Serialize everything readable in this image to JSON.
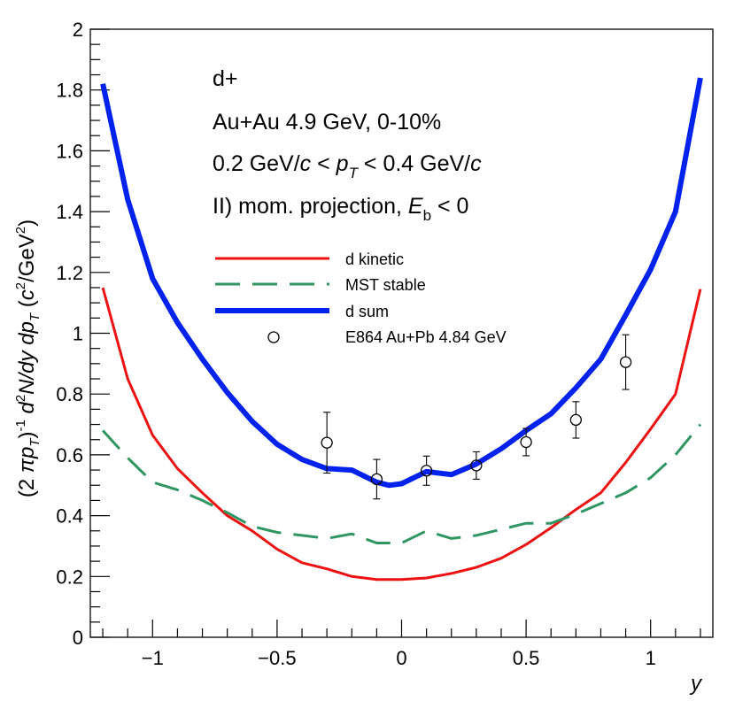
{
  "chart_data": {
    "type": "line",
    "title": "",
    "xlabel": "y",
    "ylabel": "(2πp_T)^-1 d²N/dy dp_T (c²/GeV²)",
    "xlim": [
      -1.25,
      1.25
    ],
    "ylim": [
      0,
      2
    ],
    "x_ticks": [
      -1,
      -0.5,
      0,
      0.5,
      1
    ],
    "x_tick_labels": [
      "−1",
      "−0.5",
      "0",
      "0.5",
      "1"
    ],
    "y_ticks": [
      0,
      0.2,
      0.4,
      0.6,
      0.8,
      1,
      1.2,
      1.4,
      1.6,
      1.8,
      2
    ],
    "y_tick_labels": [
      "0",
      "0.2",
      "0.4",
      "0.6",
      "0.8",
      "1",
      "1.2",
      "1.4",
      "1.6",
      "1.8",
      "2"
    ],
    "annotations": {
      "particle": "d+",
      "system": "Au+Au 4.9 GeV, 0-10%",
      "pt_pre": "0.2 GeV/",
      "pt_c1": "c",
      "pt_lt1": " < ",
      "pt_p": "p",
      "pt_T": "T",
      "pt_lt2": " < 0.4 GeV/",
      "pt_c2": "c",
      "method_pre": "II) mom. projection, ",
      "method_E": "E",
      "method_b": "b",
      "method_post": " < 0"
    },
    "series": [
      {
        "name": "d kinetic",
        "color": "#ee1111",
        "style": "solid",
        "x": [
          -1.2,
          -1.1,
          -1.0,
          -0.9,
          -0.8,
          -0.7,
          -0.6,
          -0.5,
          -0.4,
          -0.3,
          -0.2,
          -0.1,
          0.0,
          0.1,
          0.2,
          0.3,
          0.4,
          0.5,
          0.6,
          0.7,
          0.8,
          0.9,
          1.0,
          1.1,
          1.2
        ],
        "values": [
          1.15,
          0.85,
          0.665,
          0.555,
          0.475,
          0.4,
          0.35,
          0.29,
          0.245,
          0.225,
          0.2,
          0.19,
          0.19,
          0.195,
          0.21,
          0.23,
          0.26,
          0.305,
          0.36,
          0.42,
          0.475,
          0.575,
          0.685,
          0.8,
          1.145
        ]
      },
      {
        "name": "MST stable",
        "color": "#2e9563",
        "style": "dashed",
        "x": [
          -1.2,
          -1.1,
          -1.0,
          -0.9,
          -0.8,
          -0.7,
          -0.6,
          -0.5,
          -0.4,
          -0.3,
          -0.2,
          -0.1,
          0.0,
          0.1,
          0.2,
          0.3,
          0.4,
          0.5,
          0.6,
          0.7,
          0.8,
          0.9,
          1.0,
          1.1,
          1.2
        ],
        "values": [
          0.68,
          0.59,
          0.51,
          0.485,
          0.45,
          0.41,
          0.365,
          0.345,
          0.335,
          0.325,
          0.34,
          0.31,
          0.31,
          0.35,
          0.325,
          0.335,
          0.355,
          0.375,
          0.375,
          0.405,
          0.44,
          0.475,
          0.525,
          0.6,
          0.7
        ]
      },
      {
        "name": "d sum",
        "color": "#0022ee",
        "style": "thick",
        "x": [
          -1.2,
          -1.1,
          -1.0,
          -0.9,
          -0.8,
          -0.7,
          -0.6,
          -0.5,
          -0.4,
          -0.3,
          -0.2,
          -0.1,
          -0.05,
          0.0,
          0.1,
          0.2,
          0.3,
          0.4,
          0.5,
          0.6,
          0.7,
          0.8,
          0.9,
          1.0,
          1.1,
          1.2
        ],
        "values": [
          1.82,
          1.44,
          1.18,
          1.035,
          0.915,
          0.805,
          0.71,
          0.635,
          0.585,
          0.555,
          0.55,
          0.51,
          0.5,
          0.505,
          0.545,
          0.535,
          0.57,
          0.62,
          0.68,
          0.735,
          0.82,
          0.915,
          1.06,
          1.21,
          1.4,
          1.84
        ]
      },
      {
        "name": "E864 Au+Pb 4.84 GeV",
        "color": "#000000",
        "style": "open-circle-errorbars",
        "x": [
          -0.3,
          -0.1,
          0.1,
          0.3,
          0.5,
          0.7,
          0.9
        ],
        "values": [
          0.64,
          0.52,
          0.548,
          0.565,
          0.642,
          0.715,
          0.905
        ],
        "err_low": [
          0.1,
          0.065,
          0.048,
          0.045,
          0.045,
          0.06,
          0.09
        ],
        "err_high": [
          0.1,
          0.065,
          0.048,
          0.045,
          0.045,
          0.06,
          0.09
        ]
      }
    ],
    "legend_position": "upper-center"
  }
}
